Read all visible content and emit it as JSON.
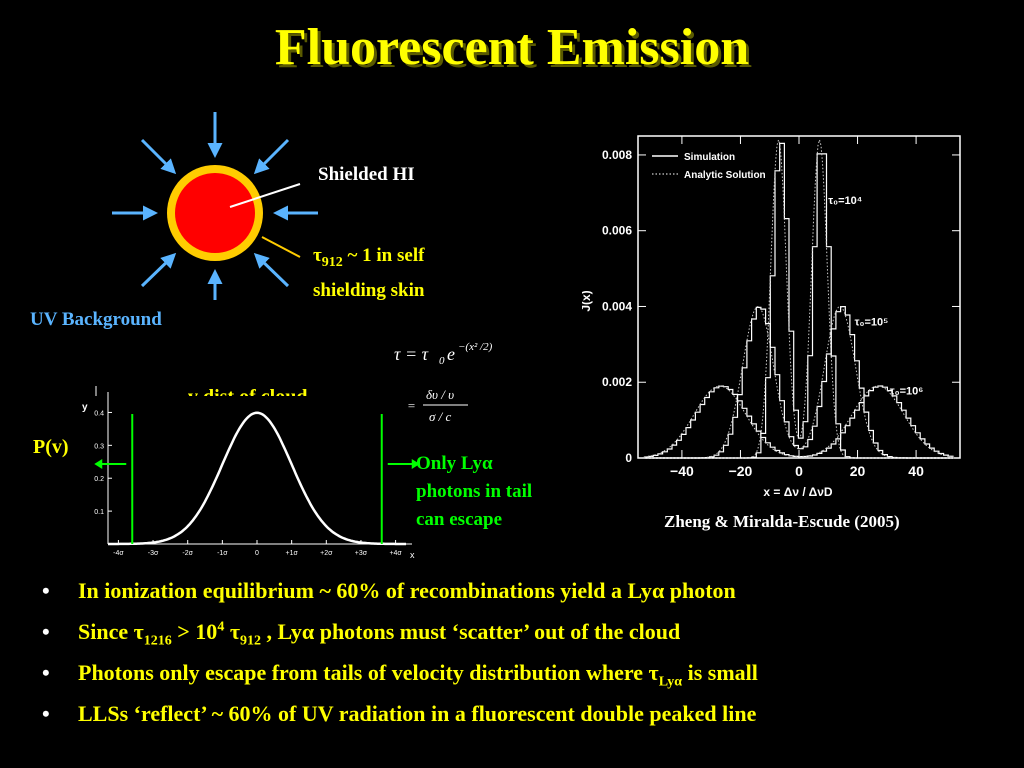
{
  "title": "Fluorescent Emission",
  "diagram": {
    "shielded_label": "Shielded HI",
    "tau_label": "~ 1 in self",
    "tau_label_line2": "shielding skin",
    "tau_symbol": "τ",
    "tau_sub": "912",
    "uv_label": "UV Background"
  },
  "equations": {
    "eq1_lhs": "τ = τ",
    "eq1_sub": "0",
    "eq1_e": "e",
    "eq1_exp": "−(x² /2)",
    "eq2_x": "x =",
    "eq2_num": "δυ / υ",
    "eq2_den": "σ / c"
  },
  "gaussian_plot": {
    "title": "v dist of cloud",
    "ylabel": "P(v)",
    "yaxis_letter": "y",
    "xaxis_letter": "x",
    "escape_text": [
      "Only Lyα",
      "photons in tail",
      "can escape"
    ],
    "escape_line1_text": "Only Ly",
    "escape_line1_alpha": "α",
    "xlim": [
      -4.3,
      4.3
    ],
    "ylim": [
      0,
      0.45
    ],
    "x_ticks": [
      -4,
      -3,
      -2,
      -1,
      0,
      1,
      2,
      3,
      4
    ],
    "x_tick_labels": [
      "-4σ",
      "-3σ",
      "-2σ",
      "-1σ",
      "0",
      "+1σ",
      "+2σ",
      "+3σ",
      "+4σ"
    ],
    "y_ticks": [
      0.1,
      0.2,
      0.3,
      0.4
    ],
    "y_tick_labels": [
      "0.1",
      "0.2",
      "0.3",
      "0.4"
    ],
    "green_markers_x": [
      -3.6,
      3.6
    ]
  },
  "chart_data": {
    "type": "line",
    "xlabel": "x = Δν / ΔνD",
    "ylabel": "J(x)",
    "xlim": [
      -55,
      55
    ],
    "ylim": [
      0,
      0.0085
    ],
    "x_ticks": [
      -40,
      -20,
      0,
      20,
      40
    ],
    "y_ticks": [
      0,
      0.002,
      0.004,
      0.006,
      0.008
    ],
    "y_tick_labels": [
      "0",
      "0.002",
      "0.004",
      "0.006",
      "0.008"
    ],
    "x_tick_labels": [
      "−40",
      "−20",
      "0",
      "20",
      "40"
    ],
    "legend": [
      "Simulation",
      "Analytic Solution"
    ],
    "legend_position": "top-left",
    "annotations": [
      "τ₀=10⁴",
      "τ₀=10⁵",
      "τ₀=10⁶"
    ],
    "series": [
      {
        "name": "τ₀=10⁴",
        "peak_x": 7.0,
        "peak_y": 0.0084,
        "width": 4.5
      },
      {
        "name": "τ₀=10⁵",
        "peak_x": 14.0,
        "peak_y": 0.004,
        "width": 9.0
      },
      {
        "name": "τ₀=10⁶",
        "peak_x": 27.0,
        "peak_y": 0.0019,
        "width": 15.0
      }
    ],
    "citation": "Zheng & Miralda-Escude (2005)"
  },
  "bullets": {
    "b1_pre": "In ionization equilibrium ~ 60%  of recombinations yield a Ly",
    "b1_alpha": "α",
    "b1_post": " photon",
    "b2_pre": "Since  τ",
    "b2_sub1": "1216",
    "b2_mid": " > 10",
    "b2_sup": "4",
    "b2_tau": " τ",
    "b2_sub2": "912",
    "b2_post1": " ,  Ly",
    "b2_alpha": "α",
    "b2_post2": " photons must  ‘scatter’ out of the cloud",
    "b3_pre": "Photons only escape from tails of velocity distribution where τ",
    "b3_sub": "Lyα",
    "b3_post": " is small",
    "b4": "LLSs ‘reflect’ ~ 60% of UV radiation in a fluorescent double peaked line",
    "bullet_char": "•"
  },
  "colors": {
    "background": "#000000",
    "title": "#ffff00",
    "cloud_core": "#ff0000",
    "cloud_skin": "#ffcc00",
    "uv_arrows": "#5ab4ff",
    "markers": "#00ff00"
  }
}
